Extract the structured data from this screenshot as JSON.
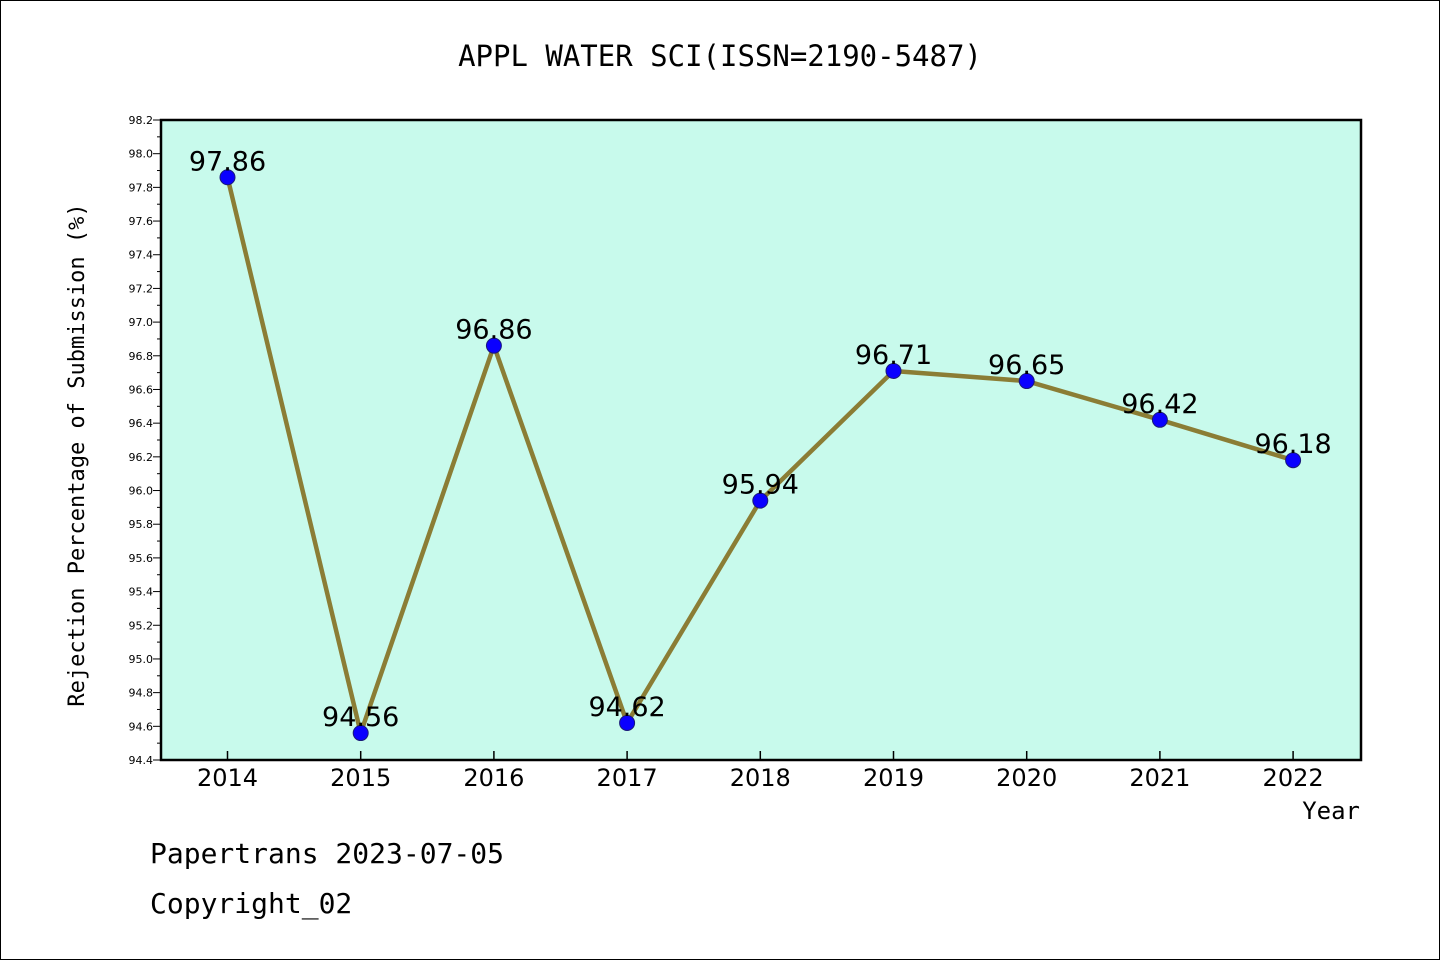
{
  "chart_data": {
    "type": "line",
    "title": "APPL WATER SCI(ISSN=2190-5487)",
    "xlabel": "Year",
    "ylabel": "Rejection Percentage of Submission (%)",
    "categories": [
      "2014",
      "2015",
      "2016",
      "2017",
      "2018",
      "2019",
      "2020",
      "2021",
      "2022"
    ],
    "values": [
      97.86,
      94.56,
      96.86,
      94.62,
      95.94,
      96.71,
      96.65,
      96.42,
      96.18
    ],
    "data_labels": [
      "97.86",
      "94.56",
      "96.86",
      "94.62",
      "95.94",
      "96.71",
      "96.65",
      "96.42",
      "96.18"
    ],
    "ylim": [
      94.4,
      98.2
    ],
    "yticks": [
      "94.4",
      "94.6",
      "94.8",
      "95.0",
      "95.2",
      "95.4",
      "95.6",
      "95.8",
      "96.0",
      "96.2",
      "96.4",
      "96.6",
      "96.8",
      "97.0",
      "97.2",
      "97.4",
      "97.6",
      "97.8",
      "98.0",
      "98.2"
    ],
    "grid": false,
    "colors": {
      "plot_background": "#c8faec",
      "line": "#8b7d35",
      "marker": "#0a00ff"
    }
  },
  "footer": {
    "line1": "Papertrans 2023-07-05",
    "line2": "Copyright_02"
  }
}
